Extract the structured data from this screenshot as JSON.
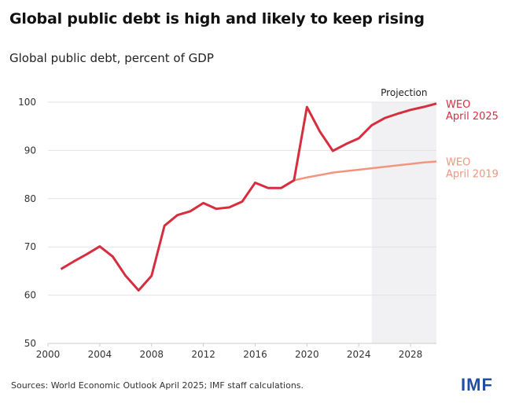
{
  "chart_data": {
    "type": "line",
    "title": "Global public debt is high and likely to keep rising",
    "subtitle": "Global public debt, percent of GDP",
    "xlabel": "",
    "ylabel": "",
    "xlim": [
      2000,
      2030
    ],
    "ylim": [
      50,
      100
    ],
    "x_ticks": [
      "2000",
      "2004",
      "2008",
      "2012",
      "2016",
      "2020",
      "2024",
      "2028"
    ],
    "y_ticks": [
      "50",
      "60",
      "70",
      "80",
      "90",
      "100"
    ],
    "grid": true,
    "projection": {
      "label": "Projection",
      "start": 2025,
      "end": 2030
    },
    "series": [
      {
        "name": "WEO April 2025",
        "label_line1": "WEO",
        "label_line2": "April 2025",
        "color": "#d62e3f",
        "x": [
          2001,
          2002,
          2003,
          2004,
          2005,
          2006,
          2007,
          2008,
          2009,
          2010,
          2011,
          2012,
          2013,
          2014,
          2015,
          2016,
          2017,
          2018,
          2019,
          2020,
          2021,
          2022,
          2023,
          2024,
          2025,
          2026,
          2027,
          2028,
          2029,
          2030
        ],
        "values": [
          65.4,
          67.0,
          68.5,
          70.1,
          68.0,
          64.0,
          61.0,
          64.0,
          74.4,
          76.6,
          77.4,
          79.1,
          77.9,
          78.2,
          79.4,
          83.3,
          82.2,
          82.2,
          83.8,
          99.0,
          93.9,
          89.9,
          91.3,
          92.5,
          95.2,
          96.7,
          97.6,
          98.4,
          99.0,
          99.7
        ]
      },
      {
        "name": "WEO April 2019",
        "label_line1": "WEO",
        "label_line2": "April 2019",
        "color": "#f2957f",
        "x": [
          2019,
          2020,
          2021,
          2022,
          2023,
          2024,
          2025,
          2026,
          2027,
          2028,
          2029,
          2030
        ],
        "values": [
          83.8,
          84.4,
          84.9,
          85.4,
          85.7,
          86.0,
          86.3,
          86.6,
          86.9,
          87.2,
          87.5,
          87.7
        ]
      }
    ]
  },
  "footer": {
    "source": "Sources: World Economic Outlook April 2025; IMF staff calculations.",
    "logo": "IMF"
  }
}
